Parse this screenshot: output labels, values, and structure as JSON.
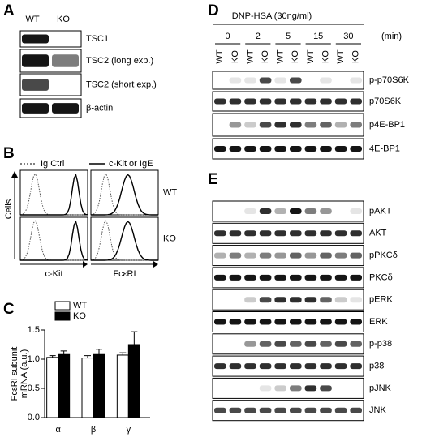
{
  "panels": {
    "A": {
      "label": "A",
      "columns": [
        "WT",
        "KO"
      ],
      "rows": [
        "TSC1",
        "TSC2 (long exp.)",
        "TSC2 (short exp.)",
        "β-actin"
      ]
    },
    "B": {
      "label": "B",
      "legend": [
        "Ig Ctrl",
        "c-Kit or IgE"
      ],
      "y_label": "Cells",
      "x_labels": [
        "c-Kit",
        "FcεRI"
      ],
      "rows": [
        "WT",
        "KO"
      ]
    },
    "C": {
      "label": "C"
    },
    "D": {
      "label": "D",
      "treatment": "DNP-HSA (30ng/ml)",
      "unit": "(min)",
      "times": [
        "0",
        "2",
        "5",
        "15",
        "30"
      ],
      "lanes": [
        "WT",
        "KO",
        "WT",
        "KO",
        "WT",
        "KO",
        "WT",
        "KO",
        "WT",
        "KO"
      ],
      "rows": [
        "p-p70S6K",
        "p70S6K",
        "p4E-BP1",
        "4E-BP1"
      ]
    },
    "E": {
      "label": "E",
      "rows": [
        "pAKT",
        "AKT",
        "pPKCδ",
        "PKCδ",
        "pERK",
        "ERK",
        "p-p38",
        "p38",
        "pJNK",
        "JNK"
      ]
    }
  },
  "chart_data": {
    "type": "bar",
    "y_label": [
      "FcεRI subunit",
      "mRNA (a.u.)"
    ],
    "categories": [
      "α",
      "β",
      "γ"
    ],
    "series": [
      {
        "name": "WT",
        "color": "#ffffff",
        "values": [
          1.03,
          1.02,
          1.07
        ],
        "errors": [
          0.03,
          0.04,
          0.04
        ]
      },
      {
        "name": "KO",
        "color": "#000000",
        "values": [
          1.08,
          1.08,
          1.25
        ],
        "errors": [
          0.06,
          0.09,
          0.22
        ]
      }
    ],
    "ylim": [
      0,
      1.5
    ],
    "yticks": [
      {
        "value": 0,
        "label": "0.0"
      },
      {
        "value": 0.5,
        "label": "0.5"
      },
      {
        "value": 1,
        "label": "1.0"
      },
      {
        "value": 1.5,
        "label": "1.5"
      }
    ]
  }
}
